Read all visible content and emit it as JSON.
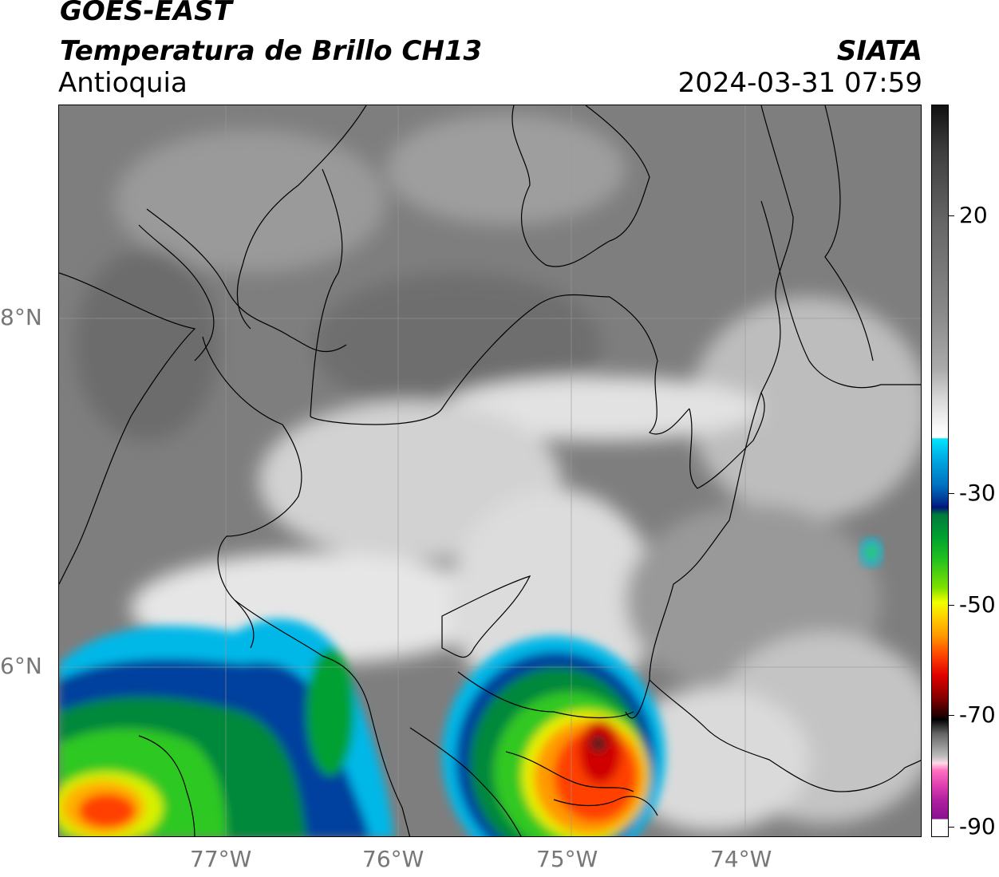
{
  "header": {
    "satellite": "GOES-EAST",
    "product": "Temperatura de Brillo CH13",
    "region": "Antioquia",
    "agency": "SIATA",
    "timestamp": "2024-03-31 07:59"
  },
  "map": {
    "lat_labels": [
      "8°N",
      "6°N"
    ],
    "lon_labels": [
      "77°W",
      "76°W",
      "75°W",
      "74°W"
    ],
    "gridlines": true
  },
  "colorbar": {
    "ticks": [
      "20",
      "-30",
      "-50",
      "-70",
      "-90"
    ],
    "colors": {
      "warm_gray": "#808080",
      "cold_cyan": "#00e6ff",
      "blue": "#002a8a",
      "green": "#00a030",
      "yellow": "#f0ff00",
      "orange": "#ff9a00",
      "red": "#e00000",
      "black": "#000000",
      "magenta": "#b020a0"
    }
  }
}
